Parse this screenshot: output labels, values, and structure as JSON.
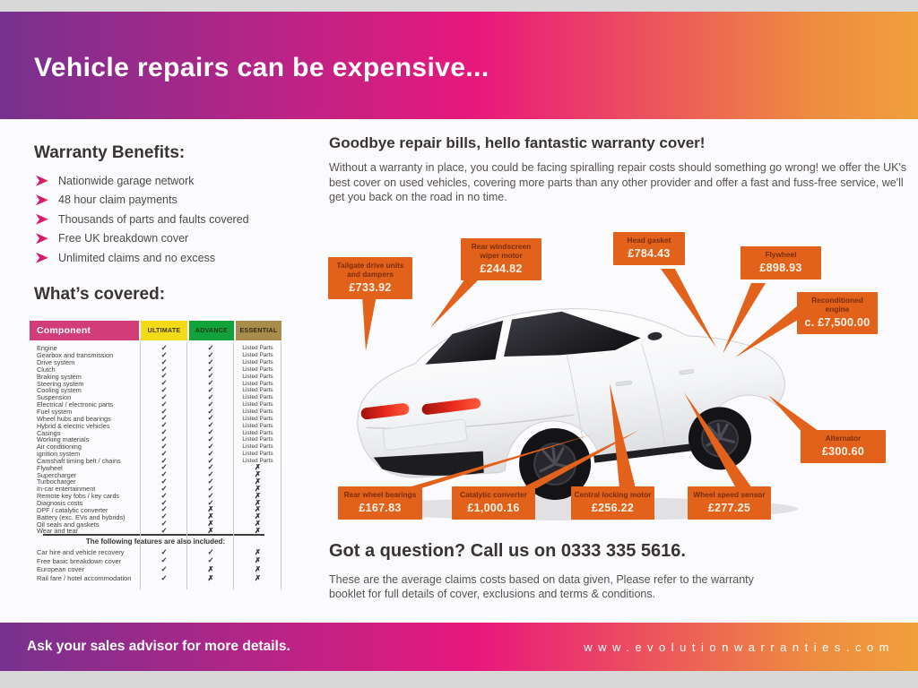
{
  "header": {
    "title": "Vehicle repairs can be expensive..."
  },
  "benefits": {
    "heading": "Warranty Benefits:",
    "items": [
      "Nationwide garage network",
      "48 hour claim payments",
      "Thousands of parts and faults covered",
      "Free UK breakdown cover",
      "Unlimited claims and no excess"
    ]
  },
  "covered": {
    "heading": "What’s covered:",
    "columns": [
      "Component",
      "ULTIMATE",
      "ADVANCE",
      "ESSENTIAL"
    ],
    "rows": [
      {
        "name": "Engine",
        "ultimate": "✓",
        "advance": "✓",
        "essential": "Listed Parts"
      },
      {
        "name": "Gearbox and transmission",
        "ultimate": "✓",
        "advance": "✓",
        "essential": "Listed Parts"
      },
      {
        "name": "Drive system",
        "ultimate": "✓",
        "advance": "✓",
        "essential": "Listed Parts"
      },
      {
        "name": "Clutch",
        "ultimate": "✓",
        "advance": "✓",
        "essential": "Listed Parts"
      },
      {
        "name": "Braking system",
        "ultimate": "✓",
        "advance": "✓",
        "essential": "Listed Parts"
      },
      {
        "name": "Steering system",
        "ultimate": "✓",
        "advance": "✓",
        "essential": "Listed Parts"
      },
      {
        "name": "Cooling system",
        "ultimate": "✓",
        "advance": "✓",
        "essential": "Listed Parts"
      },
      {
        "name": "Suspension",
        "ultimate": "✓",
        "advance": "✓",
        "essential": "Listed Parts"
      },
      {
        "name": "Electrical / electronic parts",
        "ultimate": "✓",
        "advance": "✓",
        "essential": "Listed Parts"
      },
      {
        "name": "Fuel system",
        "ultimate": "✓",
        "advance": "✓",
        "essential": "Listed Parts"
      },
      {
        "name": "Wheel hubs and bearings",
        "ultimate": "✓",
        "advance": "✓",
        "essential": "Listed Parts"
      },
      {
        "name": "Hybrid & electric vehicles",
        "ultimate": "✓",
        "advance": "✓",
        "essential": "Listed Parts"
      },
      {
        "name": "Casings",
        "ultimate": "✓",
        "advance": "✓",
        "essential": "Listed Parts"
      },
      {
        "name": "Working materials",
        "ultimate": "✓",
        "advance": "✓",
        "essential": "Listed Parts"
      },
      {
        "name": "Air conditioning",
        "ultimate": "✓",
        "advance": "✓",
        "essential": "Listed Parts"
      },
      {
        "name": "ignition system",
        "ultimate": "✓",
        "advance": "✓",
        "essential": "Listed Parts"
      },
      {
        "name": "Camshaft timing belt / chains",
        "ultimate": "✓",
        "advance": "✓",
        "essential": "Listed Parts"
      },
      {
        "name": "Flywheel",
        "ultimate": "✓",
        "advance": "✓",
        "essential": "✗"
      },
      {
        "name": "Supercharger",
        "ultimate": "✓",
        "advance": "✓",
        "essential": "✗"
      },
      {
        "name": "Turbocharger",
        "ultimate": "✓",
        "advance": "✓",
        "essential": "✗"
      },
      {
        "name": "In-car entertainment",
        "ultimate": "✓",
        "advance": "✓",
        "essential": "✗"
      },
      {
        "name": "Remote key fobs / key cards",
        "ultimate": "✓",
        "advance": "✓",
        "essential": "✗"
      },
      {
        "name": "Diagnosis costs",
        "ultimate": "✓",
        "advance": "✓",
        "essential": "✗"
      },
      {
        "name": "DPF / catalytic converter",
        "ultimate": "✓",
        "advance": "✗",
        "essential": "✗"
      },
      {
        "name": "Battery (exc. EVs and hybrids)",
        "ultimate": "✓",
        "advance": "✗",
        "essential": "✗"
      },
      {
        "name": "Oil seals and gaskets",
        "ultimate": "✓",
        "advance": "✗",
        "essential": "✗"
      },
      {
        "name": "Wear and tear",
        "ultimate": "✓",
        "advance": "✗",
        "essential": "✗"
      }
    ],
    "extra_heading": "The following features are also included:",
    "extra_rows": [
      {
        "name": "Car hire and vehicle recovery",
        "ultimate": "✓",
        "advance": "✓",
        "essential": "✗"
      },
      {
        "name": "Free basic breakdown cover",
        "ultimate": "✓",
        "advance": "✓",
        "essential": "✗"
      },
      {
        "name": "European cover",
        "ultimate": "✓",
        "advance": "✗",
        "essential": "✗"
      },
      {
        "name": "Rail fare / hotel accommodation",
        "ultimate": "✓",
        "advance": "✗",
        "essential": "✗"
      }
    ]
  },
  "promo": {
    "heading": "Goodbye repair bills, hello fantastic warranty cover!",
    "body": "Without a warranty in place, you could be facing spiralling repair costs should something go wrong! we offer the UK's best cover on used vehicles, covering more parts than any other provider and offer a fast and fuss-free service, we'll get you back on the road in no time."
  },
  "callouts": [
    {
      "id": "tailgate-drive-units",
      "label": "Tailgate drive units and dampers",
      "price": "£733.92"
    },
    {
      "id": "rear-windscreen-wiper-motor",
      "label": "Rear windscreen wiper motor",
      "price": "£244.82"
    },
    {
      "id": "head-gasket",
      "label": "Head gasket",
      "price": "£784.43"
    },
    {
      "id": "flywheel",
      "label": "Flywheel",
      "price": "£898.93"
    },
    {
      "id": "reconditioned-engine",
      "label": "Reconditioned engine",
      "price": "c. £7,500.00"
    },
    {
      "id": "alternator",
      "label": "Alternator",
      "price": "£300.60"
    },
    {
      "id": "rear-wheel-bearings",
      "label": "Rear wheel bearings",
      "price": "£167.83"
    },
    {
      "id": "catalytic-converter",
      "label": "Catalytic converter",
      "price": "£1,000.16"
    },
    {
      "id": "central-locking-motor",
      "label": "Central locking motor",
      "price": "£256.22"
    },
    {
      "id": "wheel-speed-sensor",
      "label": "Wheel speed sensor",
      "price": "£277.25"
    }
  ],
  "contact": {
    "heading": "Got a question? Call us on 0333 335 5616.",
    "disclaimer": "These are the average claims costs based on data given, Please refer to the warranty booklet for full details of cover, exclusions and terms & conditions."
  },
  "footer": {
    "left": "Ask your sales advisor for more details.",
    "website": "www.evolutionwarranties.com"
  },
  "colors": {
    "gradient_purple": "#77318f",
    "gradient_pink": "#e8187c",
    "gradient_orange": "#f0a03c",
    "callout_orange": "#e2611b",
    "table_component_pink": "#d23c78",
    "table_ultimate_yellow": "#f2da17",
    "table_advance_green": "#12a23c",
    "table_essential_gold": "#a78c4b"
  }
}
